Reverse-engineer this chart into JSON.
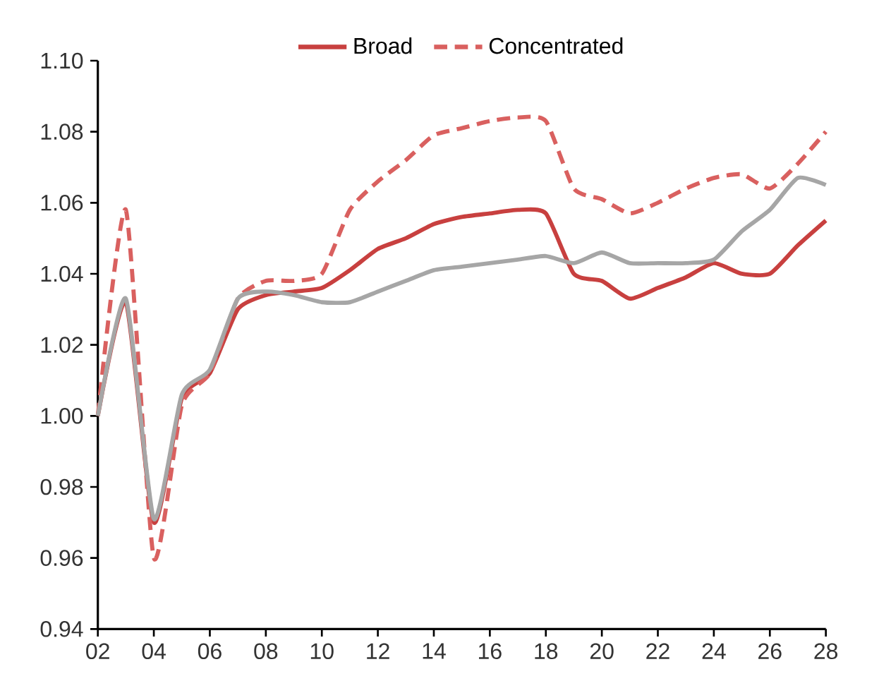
{
  "chart_data": {
    "type": "line",
    "x": [
      2,
      3,
      4,
      5,
      6,
      7,
      8,
      9,
      10,
      11,
      12,
      13,
      14,
      15,
      16,
      17,
      18,
      19,
      20,
      21,
      22,
      23,
      24,
      25,
      26,
      27,
      28
    ],
    "series": [
      {
        "name": "Broad",
        "color": "#c8403f",
        "line_style": "solid",
        "values": [
          1.0,
          1.032,
          0.97,
          1.005,
          1.012,
          1.03,
          1.034,
          1.035,
          1.036,
          1.041,
          1.047,
          1.05,
          1.054,
          1.056,
          1.057,
          1.058,
          1.057,
          1.04,
          1.038,
          1.033,
          1.036,
          1.039,
          1.043,
          1.04,
          1.04,
          1.048,
          1.055
        ]
      },
      {
        "name": "Concentrated",
        "color": "#d9605f",
        "line_style": "dashed",
        "values": [
          1.0,
          1.058,
          0.96,
          1.003,
          1.012,
          1.033,
          1.038,
          1.038,
          1.04,
          1.058,
          1.066,
          1.072,
          1.079,
          1.081,
          1.083,
          1.084,
          1.083,
          1.064,
          1.061,
          1.057,
          1.06,
          1.064,
          1.067,
          1.068,
          1.064,
          1.071,
          1.08
        ]
      },
      {
        "color": "#a6a6a6",
        "line_style": "solid",
        "values": [
          1.0,
          1.033,
          0.971,
          1.006,
          1.013,
          1.033,
          1.035,
          1.034,
          1.032,
          1.032,
          1.035,
          1.038,
          1.041,
          1.042,
          1.043,
          1.044,
          1.045,
          1.043,
          1.046,
          1.043,
          1.043,
          1.043,
          1.044,
          1.052,
          1.058,
          1.067,
          1.065
        ]
      }
    ],
    "xlim": [
      2,
      28
    ],
    "xticks": [
      {
        "value": 2,
        "label": "02"
      },
      {
        "value": 4,
        "label": "04"
      },
      {
        "value": 6,
        "label": "06"
      },
      {
        "value": 8,
        "label": "08"
      },
      {
        "value": 10,
        "label": "10"
      },
      {
        "value": 12,
        "label": "12"
      },
      {
        "value": 14,
        "label": "14"
      },
      {
        "value": 16,
        "label": "16"
      },
      {
        "value": 18,
        "label": "18"
      },
      {
        "value": 20,
        "label": "20"
      },
      {
        "value": 22,
        "label": "22"
      },
      {
        "value": 24,
        "label": "24"
      },
      {
        "value": 26,
        "label": "26"
      },
      {
        "value": 28,
        "label": "28"
      }
    ],
    "ylim": [
      0.94,
      1.1
    ],
    "yticks": [
      {
        "value": 0.94,
        "label": "0.94"
      },
      {
        "value": 0.96,
        "label": "0.96"
      },
      {
        "value": 0.98,
        "label": "0.98"
      },
      {
        "value": 1.0,
        "label": "1.00"
      },
      {
        "value": 1.02,
        "label": "1.02"
      },
      {
        "value": 1.04,
        "label": "1.04"
      },
      {
        "value": 1.06,
        "label": "1.06"
      },
      {
        "value": 1.08,
        "label": "1.08"
      },
      {
        "value": 1.1,
        "label": "1.10"
      }
    ],
    "grid": false,
    "legend": "top",
    "marker": "none"
  }
}
